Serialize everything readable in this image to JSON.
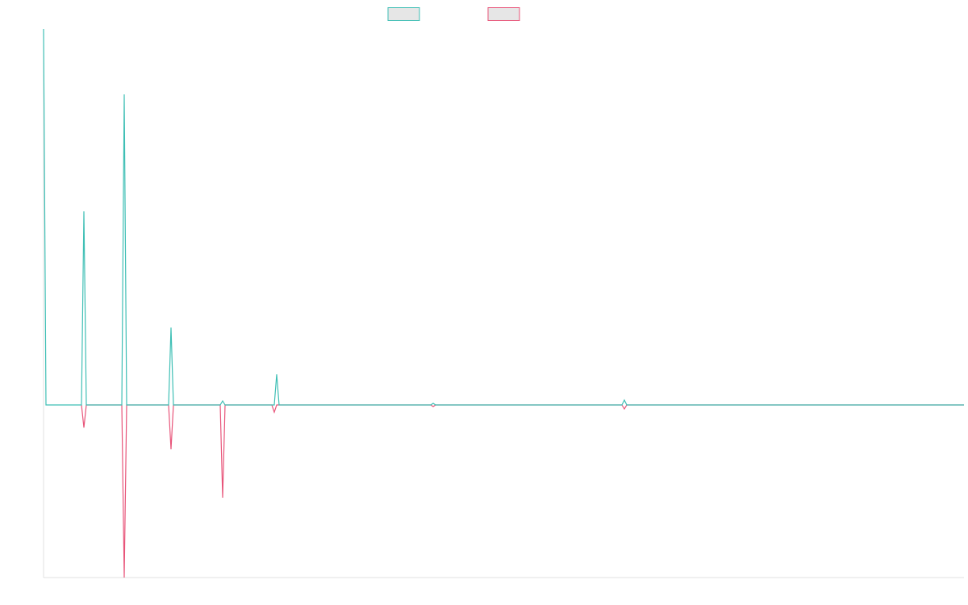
{
  "chart_data": {
    "type": "line",
    "xlim": [
      0,
      1141
    ],
    "ylim": [
      -214,
      466
    ],
    "series": [
      {
        "color": "#3fbfb5",
        "x": [
          0,
          3,
          47,
          50,
          53,
          97,
          100,
          103,
          155,
          158,
          161,
          219,
          222,
          225,
          286,
          289,
          292,
          480,
          483,
          486,
          717,
          720,
          723,
          1141
        ],
        "values": [
          466,
          0,
          0,
          240,
          0,
          0,
          385,
          0,
          0,
          96,
          0,
          0,
          5,
          0,
          0,
          38,
          0,
          0,
          2,
          0,
          0,
          6,
          0,
          0
        ]
      },
      {
        "color": "#e8557a",
        "x": [
          47,
          50,
          53,
          97,
          100,
          103,
          155,
          158,
          161,
          219,
          222,
          225,
          283,
          286,
          289,
          480,
          483,
          486,
          717,
          720,
          723,
          1141
        ],
        "values": [
          0,
          -28,
          0,
          0,
          -214,
          0,
          0,
          -55,
          0,
          0,
          -115,
          0,
          0,
          -9,
          0,
          0,
          -2,
          0,
          0,
          -5,
          0,
          0
        ]
      }
    ]
  }
}
